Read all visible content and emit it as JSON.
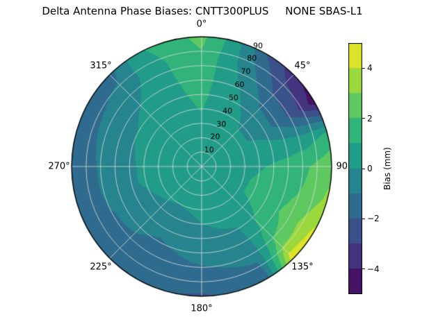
{
  "page": {
    "background": "#ffffff"
  },
  "chart_data": {
    "type": "heatmap",
    "projection": "polar",
    "title": "Delta Antenna Phase Biases: CNTT300PLUS     NONE SBAS-L1",
    "colorbar": {
      "label": "Bias (mm)",
      "tick_values": [
        4,
        2,
        0,
        -2,
        -4
      ],
      "tick_labels": [
        "4",
        "2",
        "0",
        "−2",
        "−4"
      ],
      "vmin": -5,
      "vmax": 5,
      "level_step": 1
    },
    "colormap": {
      "name": "viridis",
      "stops": [
        [
          0.0,
          68,
          1,
          84
        ],
        [
          0.1,
          72,
          35,
          116
        ],
        [
          0.2,
          64,
          67,
          135
        ],
        [
          0.3,
          52,
          94,
          141
        ],
        [
          0.4,
          41,
          120,
          142
        ],
        [
          0.5,
          32,
          144,
          140
        ],
        [
          0.6,
          34,
          167,
          132
        ],
        [
          0.7,
          66,
          190,
          113
        ],
        [
          0.8,
          121,
          209,
          81
        ],
        [
          0.9,
          189,
          222,
          38
        ],
        [
          1.0,
          253,
          231,
          37
        ]
      ]
    },
    "grid": true,
    "grid_color": "#dcdcdc",
    "azimuth_tick_values": [
      0,
      45,
      90,
      135,
      180,
      225,
      270,
      315
    ],
    "azimuth_tick_labels": [
      "0°",
      "45°",
      "90°",
      "135°",
      "180°",
      "225°",
      "270°",
      "315°"
    ],
    "radial_tick_values": [
      10,
      20,
      30,
      40,
      50,
      60,
      70,
      80,
      90
    ],
    "radial_tick_labels": [
      "10",
      "20",
      "30",
      "40",
      "50",
      "60",
      "70",
      "80",
      "90"
    ],
    "radial_max": 90,
    "radial_label_angle_deg": 25,
    "azimuth_deg": [
      0,
      15,
      30,
      45,
      60,
      75,
      90,
      105,
      120,
      135,
      150,
      165,
      180,
      195,
      210,
      225,
      240,
      255,
      270,
      285,
      300,
      315,
      330,
      345,
      360
    ],
    "radius_deg": [
      0,
      15,
      30,
      45,
      60,
      75,
      90
    ],
    "bias_mm": [
      [
        0.5,
        0.7,
        0.9,
        1.1,
        1.4,
        1.8,
        2.3
      ],
      [
        0.5,
        0.6,
        0.7,
        0.7,
        0.6,
        0.4,
        0.5
      ],
      [
        0.5,
        0.5,
        0.5,
        0.3,
        -0.2,
        -1.0,
        -2.0
      ],
      [
        0.5,
        0.4,
        0.2,
        -0.3,
        -1.2,
        -2.4,
        -3.6
      ],
      [
        0.5,
        0.4,
        0.2,
        -0.3,
        -1.3,
        -2.6,
        -4.6
      ],
      [
        0.5,
        0.5,
        0.5,
        0.5,
        0.4,
        0.5,
        1.2
      ],
      [
        0.5,
        0.6,
        0.8,
        1.0,
        1.4,
        2.0,
        2.8
      ],
      [
        0.5,
        0.6,
        0.9,
        1.2,
        1.6,
        2.2,
        3.2
      ],
      [
        0.5,
        0.6,
        0.9,
        1.3,
        1.9,
        2.8,
        4.2
      ],
      [
        0.5,
        0.5,
        0.6,
        0.8,
        1.2,
        2.4,
        4.8
      ],
      [
        0.5,
        0.4,
        0.3,
        0.1,
        -0.3,
        -0.9,
        -1.6
      ],
      [
        0.5,
        0.4,
        0.2,
        0.0,
        -0.5,
        -1.1,
        -1.9
      ],
      [
        0.5,
        0.4,
        0.2,
        -0.1,
        -0.6,
        -1.3,
        -2.1
      ],
      [
        0.5,
        0.3,
        0.1,
        -0.4,
        -0.9,
        -1.4,
        -2.0
      ],
      [
        0.5,
        0.3,
        0.0,
        -0.6,
        -1.1,
        -1.3,
        -1.2
      ],
      [
        0.5,
        0.4,
        0.1,
        -0.4,
        -0.9,
        -1.2,
        -1.3
      ],
      [
        0.5,
        0.4,
        0.2,
        -0.2,
        -0.8,
        -1.2,
        -1.6
      ],
      [
        0.5,
        0.4,
        0.3,
        0.0,
        -0.6,
        -1.1,
        -1.8
      ],
      [
        0.5,
        0.4,
        0.3,
        0.0,
        -0.5,
        -1.1,
        -1.9
      ],
      [
        0.5,
        0.5,
        0.4,
        0.1,
        -0.4,
        -1.0,
        -1.7
      ],
      [
        0.5,
        0.5,
        0.4,
        0.2,
        -0.3,
        -0.9,
        -1.6
      ],
      [
        0.5,
        0.5,
        0.5,
        0.4,
        0.0,
        -0.6,
        -1.4
      ],
      [
        0.5,
        0.6,
        0.7,
        0.7,
        0.5,
        0.3,
        0.8
      ],
      [
        0.5,
        0.6,
        0.8,
        0.9,
        1.0,
        1.2,
        1.6
      ],
      [
        0.5,
        0.7,
        0.9,
        1.1,
        1.4,
        1.8,
        2.3
      ]
    ]
  }
}
